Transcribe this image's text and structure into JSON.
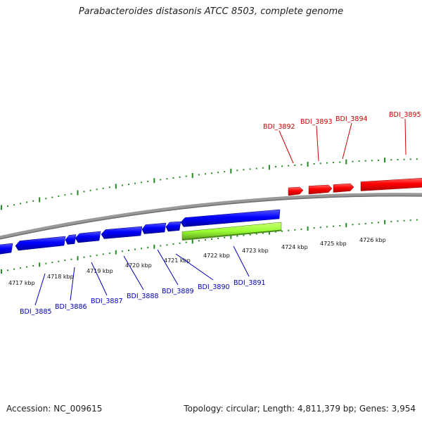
{
  "title": "Parabacteroides distasonis ATCC 8503, complete genome",
  "footer": {
    "accession": "Accession: NC_009615",
    "summary": "Topology: circular; Length: 4,811,379 bp; Genes: 3,954"
  },
  "colors": {
    "forward_gene": "#ff0000",
    "reverse_gene": "#0000ff",
    "highlight_gene": "#99ff33",
    "tick": "#228b22",
    "backbone": "#808080",
    "forward_label": "#cc0000",
    "reverse_label": "#0000bb"
  },
  "scale_ticks": [
    "4717 kbp",
    "4718 kbp",
    "4719 kbp",
    "4720 kbp",
    "4721 kbp",
    "4722 kbp",
    "4723 kbp",
    "4724 kbp",
    "4725 kbp",
    "4726 kbp"
  ],
  "forward_labels": [
    "BDI_3892",
    "BDI_3893",
    "BDI_3894",
    "BDI_3895"
  ],
  "reverse_labels": [
    "BDI_3885",
    "BDI_3886",
    "BDI_3887",
    "BDI_3888",
    "BDI_3889",
    "BDI_3890",
    "BDI_3891"
  ]
}
